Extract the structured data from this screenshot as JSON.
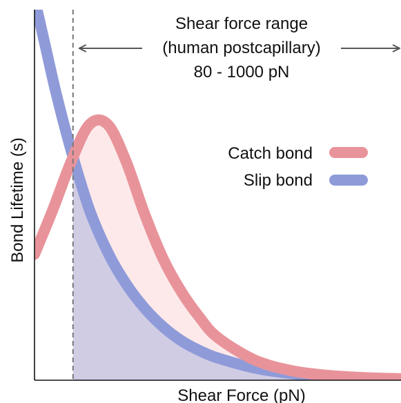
{
  "chart_data": {
    "type": "line",
    "title": "",
    "xlabel": "Shear Force (pN)",
    "ylabel": "Bond Lifetime (s)",
    "ticks": "none",
    "grid": false,
    "legend_position": "top-right",
    "x_range": [
      0,
      10
    ],
    "y_range": [
      0,
      10
    ],
    "series": [
      {
        "name": "Catch bond",
        "color": "#e8939a",
        "fill": "#fde9ea",
        "x": [
          0,
          0.5,
          1,
          1.5,
          2,
          2.5,
          3,
          3.5,
          4,
          4.5,
          5,
          6,
          7,
          8,
          9,
          10
        ],
        "y": [
          3.4,
          4.6,
          5.9,
          6.9,
          6.9,
          5.9,
          4.5,
          3.3,
          2.4,
          1.7,
          1.15,
          0.55,
          0.26,
          0.13,
          0.07,
          0.04
        ]
      },
      {
        "name": "Slip bond",
        "color": "#8f9bd9",
        "fill": "#d0cce4",
        "x": [
          0,
          0.3,
          0.6,
          1,
          1.5,
          2,
          2.5,
          3,
          3.5,
          4,
          4.5,
          5,
          6,
          7,
          8,
          9,
          10
        ],
        "y": [
          10.3,
          9.0,
          7.7,
          6.2,
          4.6,
          3.45,
          2.6,
          1.95,
          1.45,
          1.07,
          0.8,
          0.6,
          0.33,
          0.18,
          0.1,
          0.055,
          0.03
        ]
      }
    ],
    "annotation": {
      "text_lines": [
        "Shear force range",
        "(human postcapillary)",
        "80 - 1000 pN"
      ],
      "range_start_x": 1.05,
      "marker": "dashed-vertical-line",
      "arrow": "double-headed"
    }
  }
}
